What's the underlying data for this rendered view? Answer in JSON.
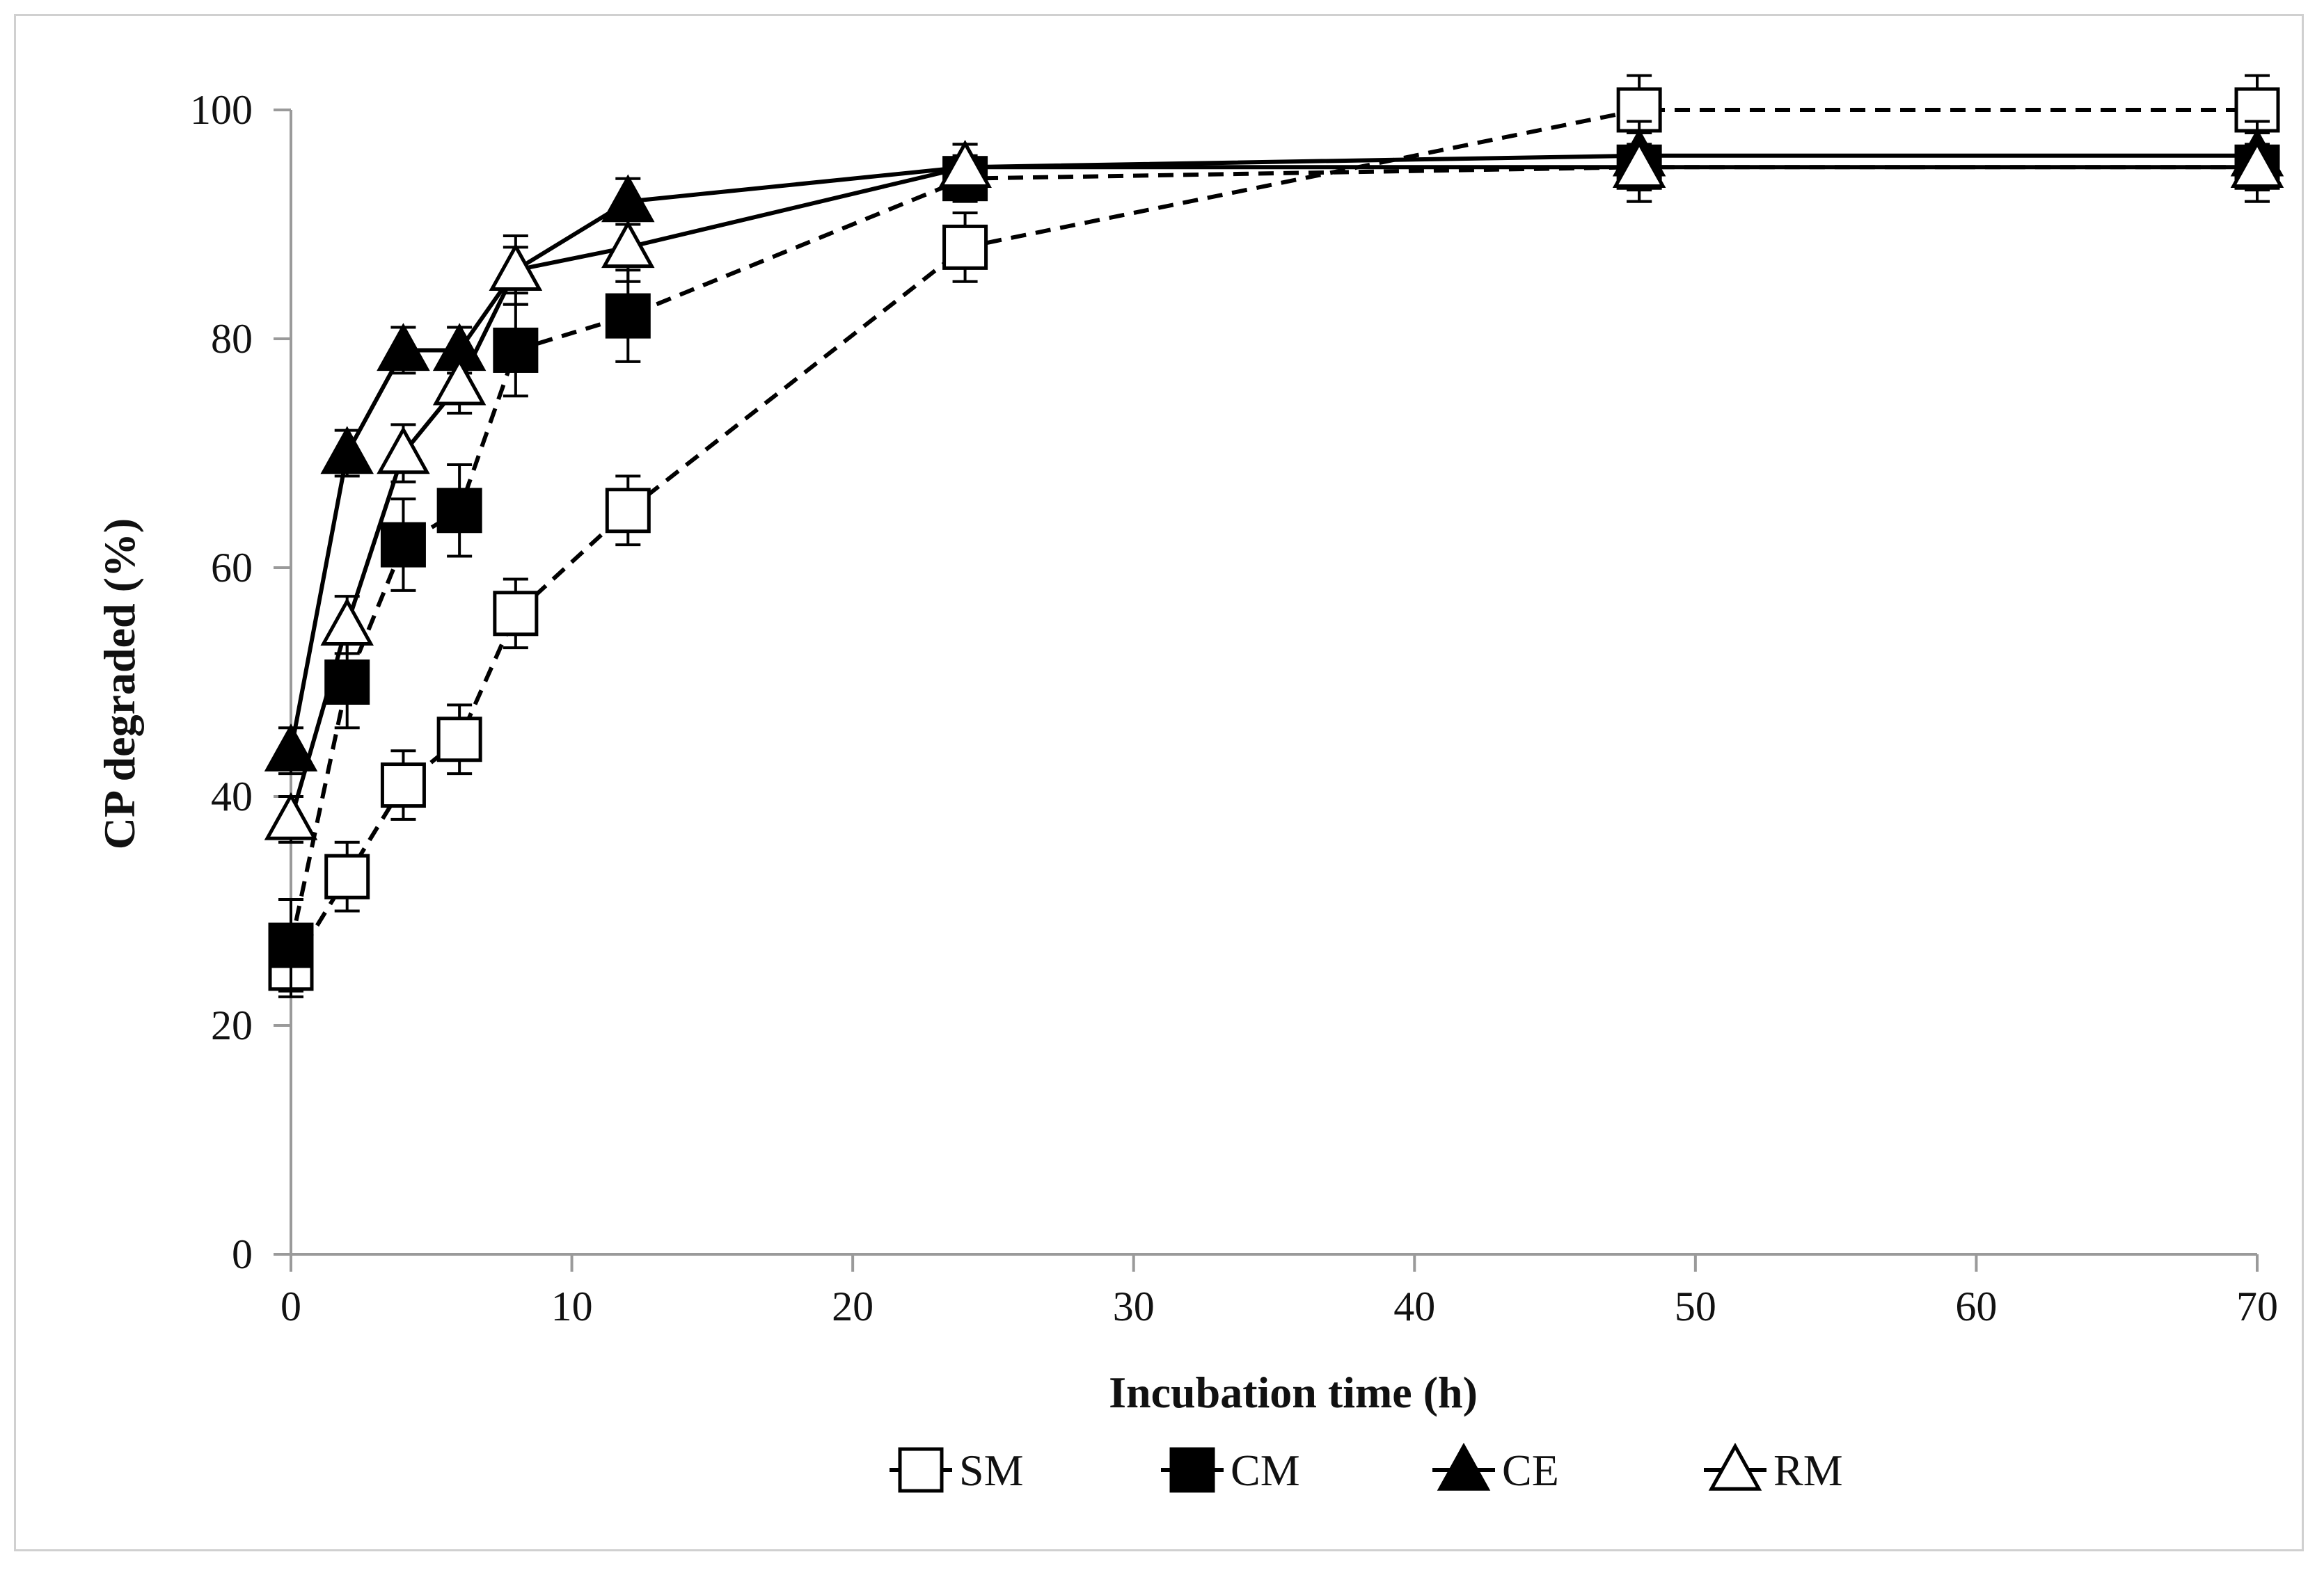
{
  "chart_data": {
    "type": "line",
    "title": "",
    "xlabel": "Incubation time (h)",
    "ylabel": "CP degraded (%)",
    "xlim": [
      0,
      70
    ],
    "ylim": [
      0,
      100
    ],
    "xticks": [
      "0",
      "10",
      "20",
      "30",
      "40",
      "50",
      "60",
      "70"
    ],
    "yticks": [
      "0",
      "20",
      "40",
      "60",
      "80",
      "100"
    ],
    "grid": false,
    "legend_position": "bottom",
    "x": [
      0,
      2,
      4,
      6,
      8,
      12,
      24,
      48,
      70
    ],
    "series": [
      {
        "name": "SM",
        "marker": "open-square",
        "line": "dashed",
        "values": [
          25,
          33,
          41,
          45,
          56,
          65,
          88,
          100,
          100
        ],
        "errors": [
          2.5,
          3,
          3,
          3,
          3,
          3,
          3,
          3,
          3
        ]
      },
      {
        "name": "CM",
        "marker": "filled-square",
        "line": "dashed",
        "values": [
          27,
          50,
          62,
          65,
          79,
          82,
          94,
          95,
          95
        ],
        "errors": [
          4,
          4,
          4,
          4,
          4,
          4,
          2,
          3,
          3
        ]
      },
      {
        "name": "CE",
        "marker": "filled-triangle",
        "line": "solid",
        "values": [
          44,
          70,
          79,
          79,
          86,
          92,
          95,
          96,
          96
        ],
        "errors": [
          2,
          2,
          2,
          2,
          2,
          2,
          2,
          3,
          3
        ]
      },
      {
        "name": "RM",
        "marker": "open-triangle",
        "line": "solid",
        "values": [
          38,
          55,
          70,
          76,
          86,
          88,
          95,
          95,
          95
        ],
        "errors": [
          2,
          2.5,
          2.5,
          2.5,
          3,
          3,
          2,
          3,
          3
        ]
      }
    ]
  }
}
